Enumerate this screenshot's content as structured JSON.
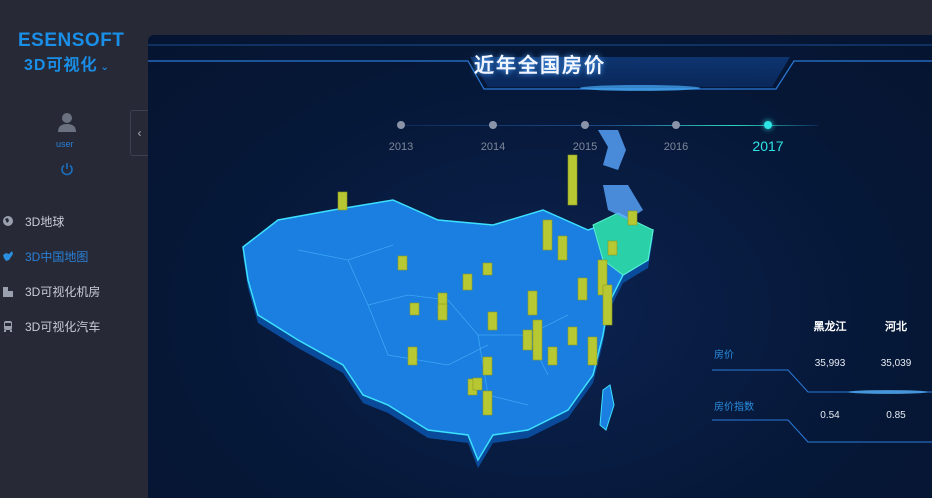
{
  "sidebar": {
    "logo_line1": "ESENSOFT",
    "logo_line2": "3D可视化",
    "logo_chevron": "⌄",
    "user": "user",
    "collapse_icon": "‹",
    "items": [
      {
        "label": "3D地球",
        "icon": "globe-icon",
        "active": false
      },
      {
        "label": "3D中国地图",
        "icon": "china-map-icon",
        "active": true
      },
      {
        "label": "3D可视化机房",
        "icon": "building-icon",
        "active": false
      },
      {
        "label": "3D可视化汽车",
        "icon": "car-icon",
        "active": false
      }
    ]
  },
  "main": {
    "title": "近年全国房价",
    "timeline": {
      "years": [
        "2013",
        "2014",
        "2015",
        "2016",
        "2017"
      ],
      "selected": "2017"
    },
    "table": {
      "columns": [
        "黑龙江",
        "河北"
      ],
      "rows": [
        {
          "label": "房价",
          "values": [
            "35,993",
            "35,039"
          ]
        },
        {
          "label": "房价指数",
          "values": [
            "0.54",
            "0.85"
          ]
        }
      ]
    }
  },
  "colors": {
    "accent": "#1a8fe8",
    "map_fill": "#1a7fe0",
    "bar": "#b8c832",
    "highlight": "#2ee6e6"
  }
}
